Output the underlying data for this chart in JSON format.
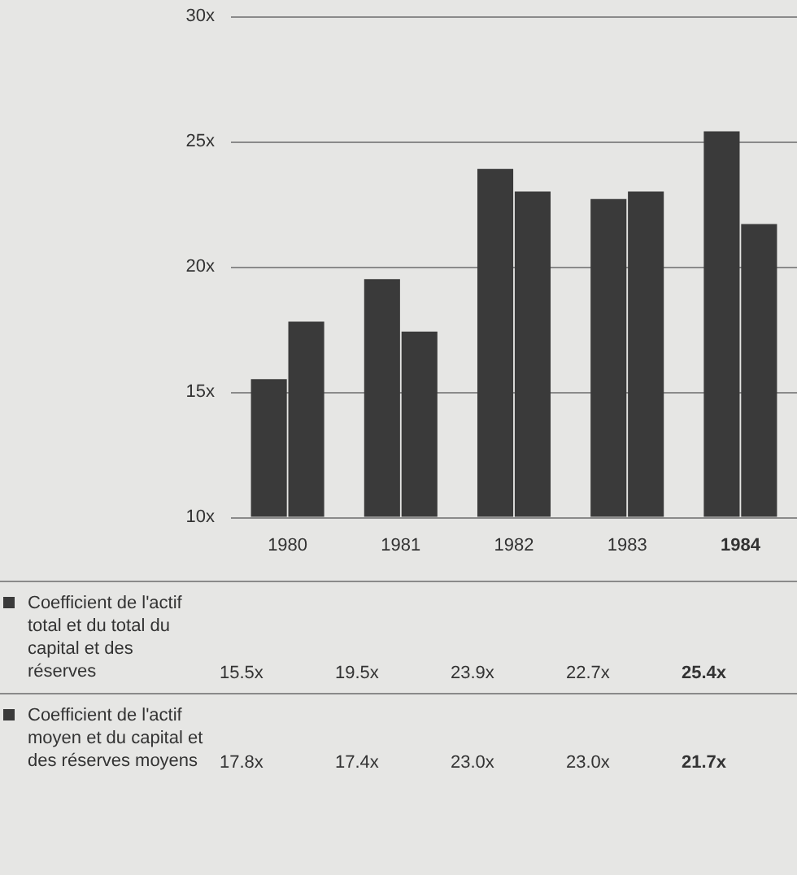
{
  "chart_data": {
    "type": "bar",
    "categories": [
      "1980",
      "1981",
      "1982",
      "1983",
      "1984"
    ],
    "series": [
      {
        "name": "Coefficient de l'actif total et du total du capital et des réserves",
        "color": "#3a3a3a",
        "values": [
          15.5,
          19.5,
          23.9,
          22.7,
          25.4
        ],
        "value_labels": [
          "15.5x",
          "19.5x",
          "23.9x",
          "22.7x",
          "25.4x"
        ]
      },
      {
        "name": "Coefficient de l'actif moyen et du capital et des réserves moyens",
        "color": "#3a3a3a",
        "values": [
          17.8,
          17.4,
          23.0,
          23.0,
          21.7
        ],
        "value_labels": [
          "17.8x",
          "17.4x",
          "23.0x",
          "23.0x",
          "21.7x"
        ]
      }
    ],
    "ylim": [
      10,
      30
    ],
    "yticks": [
      {
        "value": 10,
        "label": "10x"
      },
      {
        "value": 15,
        "label": "15x"
      },
      {
        "value": 20,
        "label": "20x"
      },
      {
        "value": 25,
        "label": "25x"
      },
      {
        "value": 30,
        "label": "30x"
      }
    ],
    "grid": "y",
    "legend": "bottom"
  }
}
